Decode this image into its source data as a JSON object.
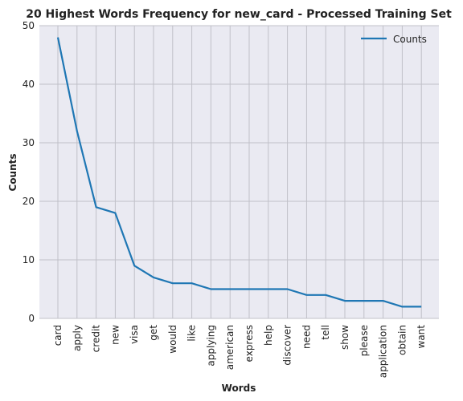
{
  "chart_data": {
    "type": "line",
    "title": "20 Highest Words Frequency for new_card - Processed Training Set",
    "xlabel": "Words",
    "ylabel": "Counts",
    "categories": [
      "card",
      "apply",
      "credit",
      "new",
      "visa",
      "get",
      "would",
      "like",
      "applying",
      "american",
      "express",
      "help",
      "discover",
      "need",
      "tell",
      "show",
      "please",
      "application",
      "obtain",
      "want"
    ],
    "series": [
      {
        "name": "Counts",
        "values": [
          48,
          32,
          19,
          18,
          9,
          7,
          6,
          6,
          5,
          5,
          5,
          5,
          5,
          4,
          4,
          3,
          3,
          3,
          2,
          2
        ]
      }
    ],
    "ylim": [
      0,
      50
    ],
    "yticks": [
      0,
      10,
      20,
      30,
      40,
      50
    ],
    "grid": true,
    "legend_position": "top-right",
    "colors": {
      "line": "#1f77b4",
      "background": "#eaeaf2",
      "grid": "#c0c0c8"
    }
  }
}
